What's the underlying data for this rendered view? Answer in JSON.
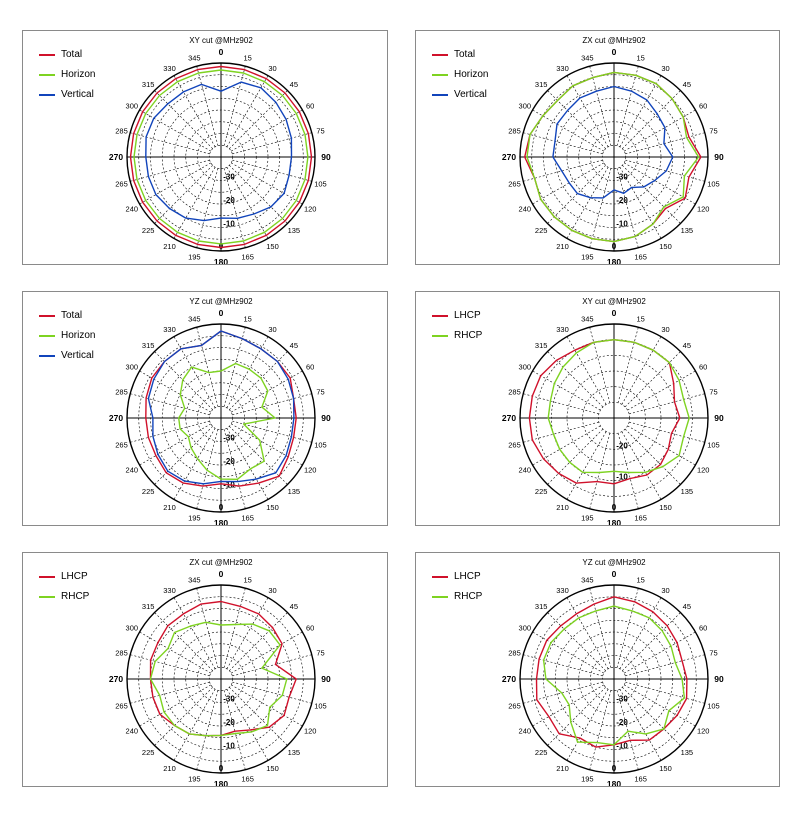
{
  "colors": {
    "red": "#d0112b",
    "green": "#7ed321",
    "blue": "#1144bb"
  },
  "chart_data": [
    {
      "type": "polar-line",
      "title": "XY cut @MHz902",
      "angle_labels": [
        "0",
        "15",
        "30",
        "45",
        "60",
        "75",
        "90",
        "105",
        "120",
        "135",
        "150",
        "165",
        "180",
        "195",
        "210",
        "225",
        "240",
        "265",
        "270",
        "285",
        "300",
        "315",
        "330",
        "345"
      ],
      "radial_ticks": [
        "-30",
        "-20",
        "-10",
        "0"
      ],
      "rlim": [
        -40,
        0
      ],
      "legend": "top-left",
      "series": [
        {
          "name": "Total",
          "color": "red",
          "values": [
            -1.5,
            -1.5,
            -1.5,
            -1.5,
            -1.5,
            -1.5,
            -1.5,
            -1.5,
            -1.5,
            -1.5,
            -1.5,
            -1.5,
            -1.5,
            -1.5,
            -1.5,
            -1.5,
            -1.5,
            -1.5,
            -1.5,
            -1.5,
            -1.5,
            -1.5,
            -1.5,
            -1.5
          ]
        },
        {
          "name": "Horizon",
          "color": "green",
          "values": [
            -3,
            -3,
            -3,
            -3,
            -3,
            -3,
            -3,
            -3,
            -3,
            -3,
            -3,
            -3,
            -3,
            -3,
            -3,
            -3,
            -3,
            -3,
            -3,
            -3,
            -3,
            -3,
            -3,
            -3
          ]
        },
        {
          "name": "Vertical",
          "color": "blue",
          "values": [
            -12,
            -7,
            -6,
            -7,
            -8,
            -9,
            -10,
            -10,
            -9,
            -10,
            -12,
            -13,
            -14,
            -12,
            -10,
            -9,
            -8,
            -8,
            -8,
            -7,
            -7,
            -8,
            -8,
            -8
          ]
        }
      ]
    },
    {
      "type": "polar-line",
      "title": "ZX cut @MHz902",
      "angle_labels": [
        "0",
        "15",
        "30",
        "45",
        "60",
        "75",
        "90",
        "105",
        "120",
        "135",
        "150",
        "165",
        "180",
        "195",
        "210",
        "225",
        "240",
        "265",
        "270",
        "285",
        "300",
        "315",
        "330",
        "345"
      ],
      "radial_ticks": [
        "-30",
        "-20",
        "-10",
        "0"
      ],
      "rlim": [
        -40,
        0
      ],
      "legend": "top-left",
      "series": [
        {
          "name": "Total",
          "color": "red",
          "values": [
            -4,
            -4,
            -4,
            -5,
            -6,
            -7,
            -3,
            -7,
            -5,
            -9,
            -7,
            -5,
            -4,
            -4,
            -4,
            -4,
            -4,
            -5,
            -2,
            -3,
            -5,
            -6,
            -5,
            -5
          ]
        },
        {
          "name": "Horizon",
          "color": "green",
          "values": [
            -4,
            -4,
            -4,
            -5,
            -6,
            -8,
            -4,
            -9,
            -6,
            -10,
            -7,
            -5,
            -4,
            -4,
            -4,
            -4,
            -4,
            -5,
            -3,
            -3,
            -5,
            -6,
            -5,
            -5
          ]
        },
        {
          "name": "Vertical",
          "color": "blue",
          "values": [
            -10,
            -11,
            -12,
            -14,
            -15,
            -18,
            -15,
            -17,
            -20,
            -22,
            -25,
            -24,
            -26,
            -22,
            -20,
            -18,
            -18,
            -17,
            -14,
            -14,
            -12,
            -12,
            -11,
            -11
          ]
        }
      ]
    },
    {
      "type": "polar-line",
      "title": "YZ cut @MHz902",
      "angle_labels": [
        "0",
        "15",
        "30",
        "45",
        "60",
        "75",
        "90",
        "105",
        "120",
        "135",
        "150",
        "165",
        "180",
        "195",
        "210",
        "225",
        "240",
        "265",
        "270",
        "285",
        "300",
        "315",
        "330",
        "345"
      ],
      "radial_ticks": [
        "-30",
        "-20",
        "-10",
        "0"
      ],
      "rlim": [
        -40,
        0
      ],
      "legend": "top-left",
      "series": [
        {
          "name": "Total",
          "color": "red",
          "values": [
            -3,
            -5,
            -6,
            -6,
            -6,
            -8,
            -8,
            -8,
            -7,
            -5,
            -8,
            -10,
            -12,
            -10,
            -8,
            -7,
            -8,
            -8,
            -8,
            -7,
            -6,
            -6,
            -6,
            -8
          ]
        },
        {
          "name": "Horizon",
          "color": "green",
          "values": [
            -20,
            -16,
            -16,
            -16,
            -17,
            -22,
            -17,
            -30,
            -21,
            -14,
            -15,
            -13,
            -14,
            -17,
            -20,
            -22,
            -24,
            -22,
            -22,
            -24,
            -20,
            -17,
            -15,
            -20
          ]
        },
        {
          "name": "Vertical",
          "color": "blue",
          "values": [
            -3,
            -5,
            -6,
            -6,
            -7,
            -8,
            -9,
            -9,
            -8,
            -7,
            -10,
            -12,
            -13,
            -11,
            -9,
            -8,
            -9,
            -10,
            -11,
            -8,
            -7,
            -6,
            -6,
            -8
          ]
        }
      ]
    },
    {
      "type": "polar-line",
      "title": "XY cut @MHz902",
      "angle_labels": [
        "0",
        "15",
        "30",
        "45",
        "60",
        "75",
        "90",
        "105",
        "120",
        "135",
        "150",
        "165",
        "180",
        "195",
        "210",
        "225",
        "240",
        "265",
        "270",
        "285",
        "300",
        "315",
        "330",
        "345"
      ],
      "radial_ticks": [
        "-20",
        "-10",
        "0"
      ],
      "rlim": [
        -30,
        0
      ],
      "legend": "top-left",
      "series": [
        {
          "name": "LHCP",
          "color": "red",
          "values": [
            -5,
            -5,
            -5,
            -5,
            -8,
            -10,
            -9,
            -11,
            -10,
            -9,
            -9,
            -10,
            -9,
            -9,
            -6,
            -5,
            -4,
            -3,
            -3,
            -3,
            -3,
            -4,
            -5,
            -5
          ]
        },
        {
          "name": "RHCP",
          "color": "green",
          "values": [
            -5,
            -5,
            -5,
            -5,
            -6,
            -7,
            -6,
            -7,
            -6,
            -8,
            -10,
            -12,
            -13,
            -12,
            -10,
            -10,
            -10,
            -10,
            -9,
            -9,
            -8,
            -7,
            -6,
            -5
          ]
        }
      ]
    },
    {
      "type": "polar-line",
      "title": "ZX cut @MHz902",
      "angle_labels": [
        "0",
        "15",
        "30",
        "45",
        "60",
        "75",
        "90",
        "105",
        "120",
        "135",
        "150",
        "165",
        "180",
        "195",
        "210",
        "225",
        "240",
        "265",
        "270",
        "285",
        "300",
        "315",
        "330",
        "345"
      ],
      "radial_ticks": [
        "-30",
        "-20",
        "-10",
        "0"
      ],
      "rlim": [
        -40,
        0
      ],
      "legend": "top-left",
      "series": [
        {
          "name": "LHCP",
          "color": "red",
          "values": [
            -7,
            -8,
            -8,
            -9,
            -10,
            -16,
            -8,
            -10,
            -9,
            -11,
            -15,
            -17,
            -16,
            -15,
            -13,
            -12,
            -10,
            -10,
            -10,
            -9,
            -9,
            -8,
            -8,
            -7
          ]
        },
        {
          "name": "RHCP",
          "color": "green",
          "values": [
            -17,
            -16,
            -13,
            -11,
            -11,
            -22,
            -12,
            -13,
            -16,
            -12,
            -14,
            -16,
            -16,
            -15,
            -13,
            -12,
            -12,
            -13,
            -10,
            -11,
            -14,
            -12,
            -14,
            -15
          ]
        }
      ]
    },
    {
      "type": "polar-line",
      "title": "YZ cut @MHz902",
      "angle_labels": [
        "0",
        "15",
        "30",
        "45",
        "60",
        "75",
        "90",
        "105",
        "120",
        "135",
        "150",
        "165",
        "180",
        "195",
        "210",
        "225",
        "240",
        "265",
        "270",
        "285",
        "300",
        "315",
        "330",
        "345"
      ],
      "radial_ticks": [
        "-30",
        "-20",
        "-10",
        "0"
      ],
      "rlim": [
        -40,
        0
      ],
      "legend": "top-left",
      "series": [
        {
          "name": "LHCP",
          "color": "red",
          "values": [
            -5,
            -6,
            -7,
            -8,
            -9,
            -10,
            -9,
            -8,
            -9,
            -10,
            -10,
            -13,
            -12,
            -10,
            -11,
            -7,
            -8,
            -6,
            -7,
            -7,
            -7,
            -8,
            -8,
            -7
          ]
        },
        {
          "name": "RHCP",
          "color": "green",
          "values": [
            -9,
            -10,
            -10,
            -11,
            -12,
            -13,
            -11,
            -9,
            -13,
            -10,
            -13,
            -17,
            -12,
            -12,
            -9,
            -14,
            -18,
            -17,
            -11,
            -9,
            -9,
            -10,
            -10,
            -10
          ]
        }
      ]
    }
  ]
}
